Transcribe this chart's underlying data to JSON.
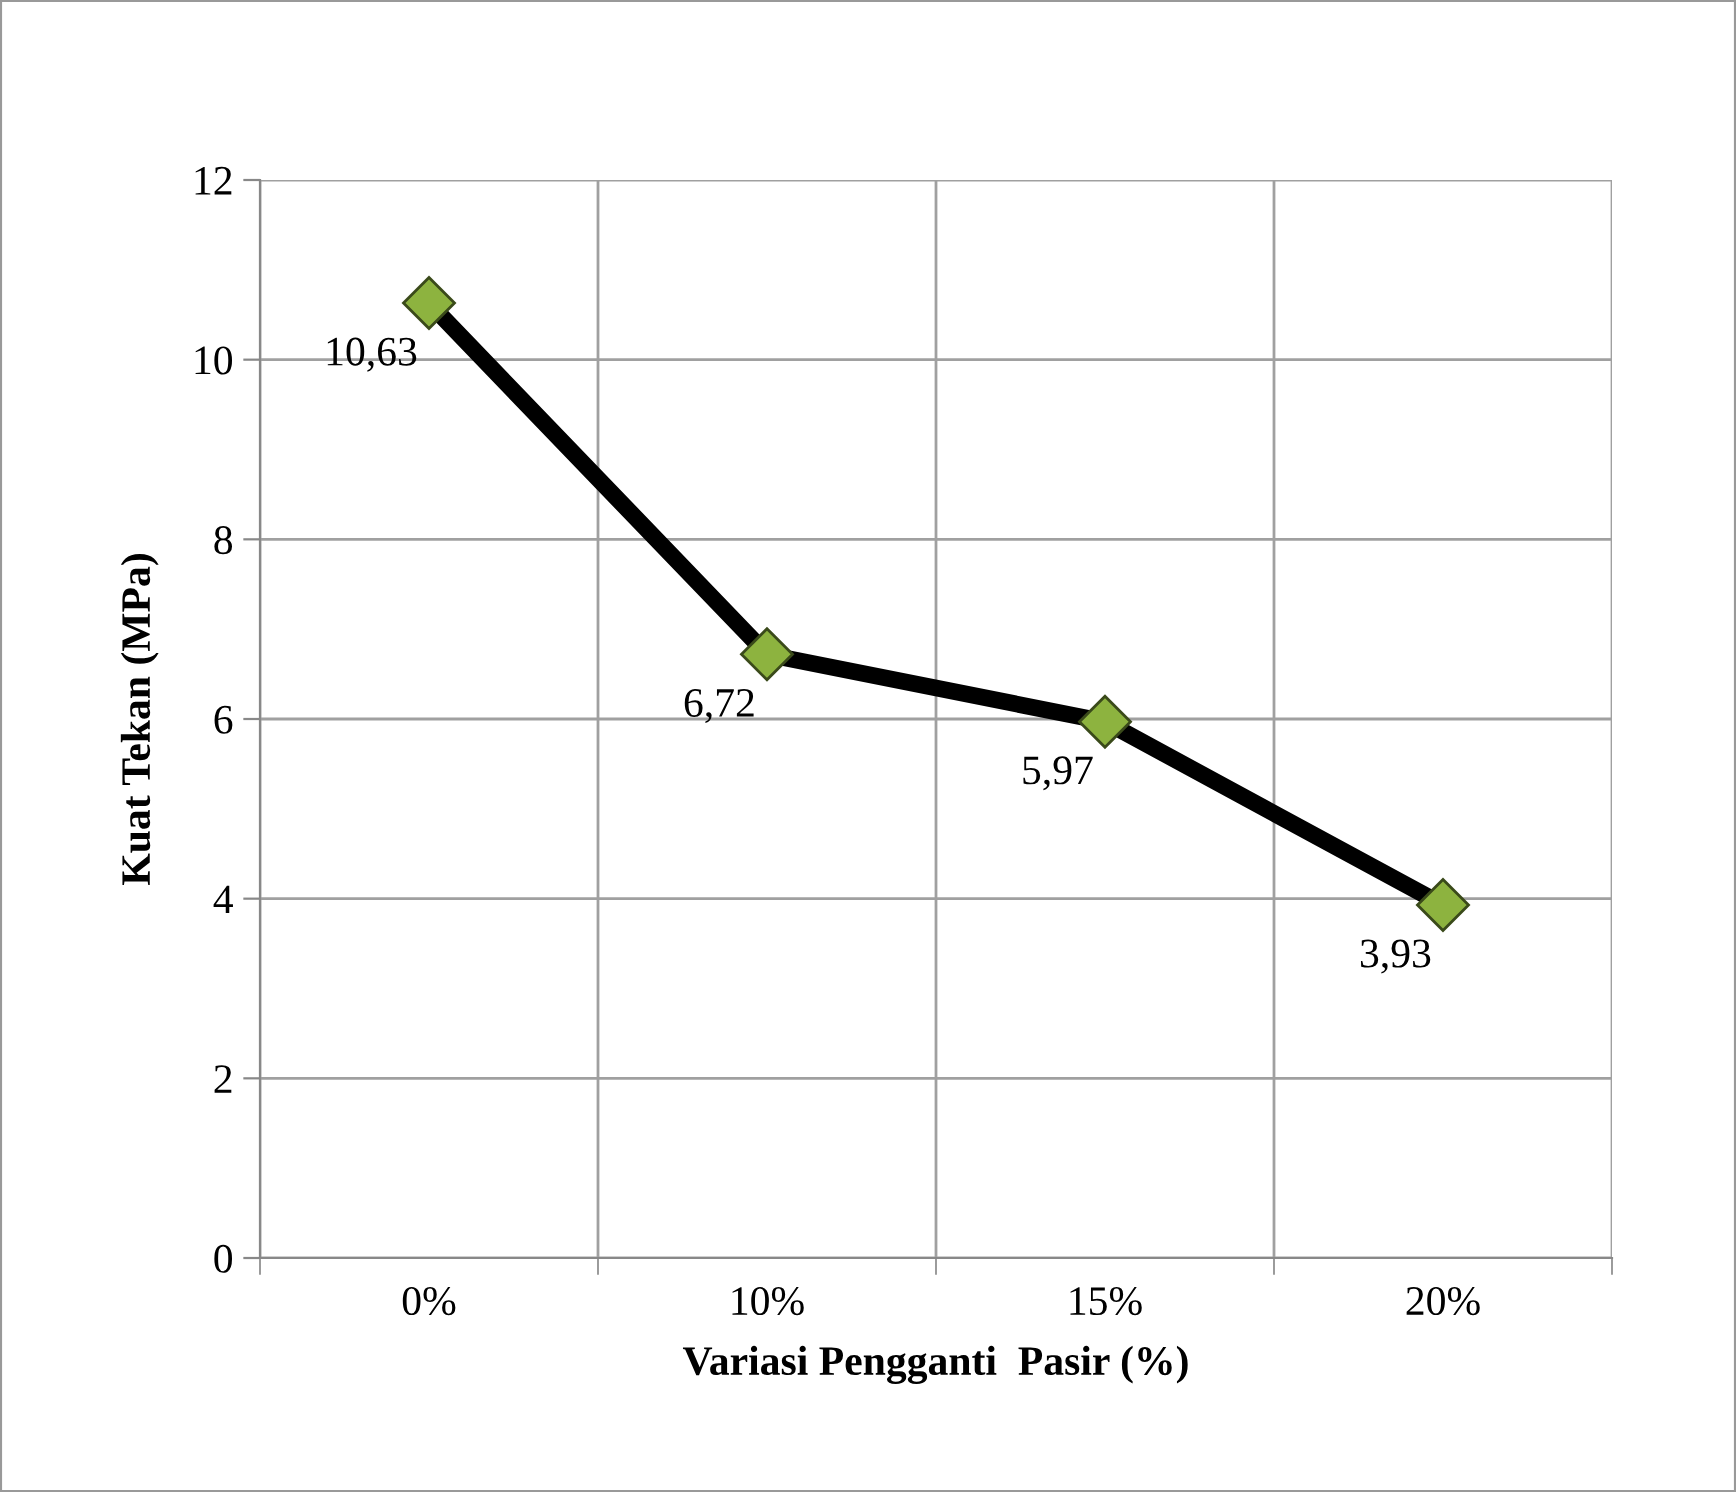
{
  "chart_data": {
    "type": "line",
    "xlabel": "Variasi Pengganti  Pasir (%)",
    "ylabel": "Kuat Tekan (MPa)",
    "categories": [
      "0%",
      "10%",
      "15%",
      "20%"
    ],
    "series": [
      {
        "color": "#000000",
        "values": [
          10.63,
          6.72,
          5.97,
          3.93
        ],
        "value_labels": [
          "10,63",
          "6,72",
          "5,97",
          "3,93"
        ]
      }
    ],
    "ylim": [
      0,
      12
    ],
    "yticks": [
      0,
      2,
      4,
      6,
      8,
      10,
      12
    ],
    "grid": true,
    "marker": "diamond",
    "line_style": "solid",
    "legend": false
  }
}
